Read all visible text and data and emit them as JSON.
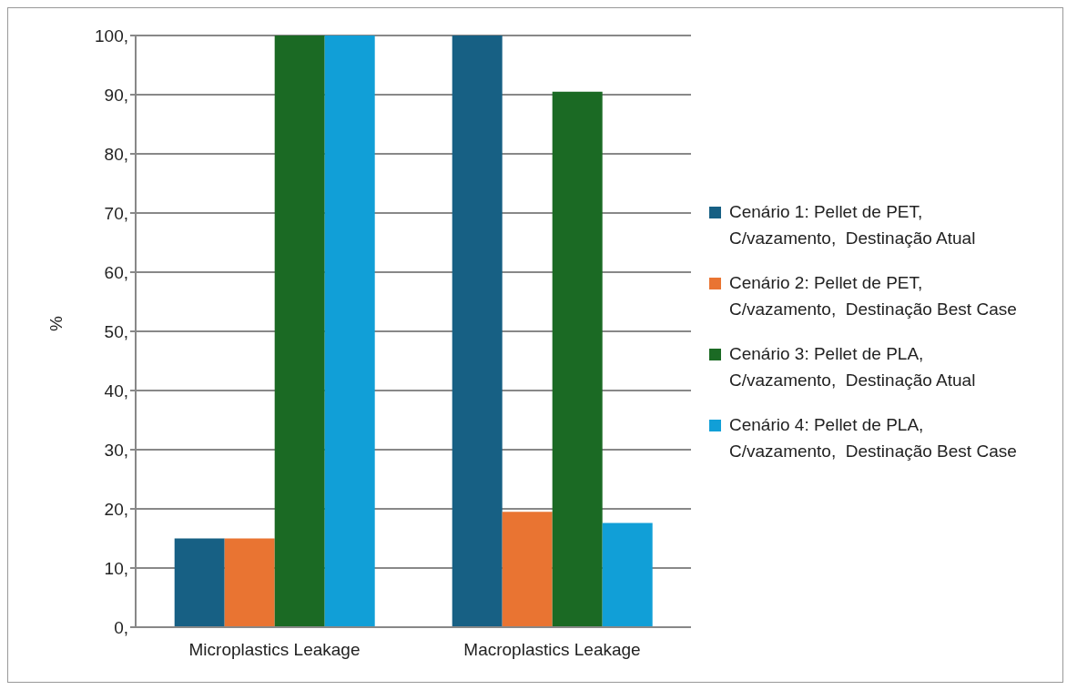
{
  "chart_data": {
    "type": "bar",
    "ylabel": "%",
    "categories": [
      "Microplastics Leakage",
      "Macroplastics Leakage"
    ],
    "series": [
      {
        "name": "Cenário 1: Pellet de PET, C/vazamento,  Destinação Atual",
        "color": "#176084",
        "values": [
          15.0,
          100
        ]
      },
      {
        "name": "Cenário 2: Pellet de PET, C/vazamento,  Destinação Best Case",
        "color": "#e97432",
        "values": [
          15.0,
          19.5
        ]
      },
      {
        "name": "Cenário 3: Pellet de PLA, C/vazamento,  Destinação Atual",
        "color": "#1b6a24",
        "values": [
          100,
          90.5
        ]
      },
      {
        "name": "Cenário 4: Pellet de PLA, C/vazamento,  Destinação Best Case",
        "color": "#119fd7",
        "values": [
          100,
          17.6
        ]
      }
    ],
    "ylim": [
      0,
      100
    ],
    "yticks": [
      {
        "value": 0,
        "label": "0,"
      },
      {
        "value": 10,
        "label": "10,"
      },
      {
        "value": 20,
        "label": "20,"
      },
      {
        "value": 30,
        "label": "30,"
      },
      {
        "value": 40,
        "label": "40,"
      },
      {
        "value": 50,
        "label": "50,"
      },
      {
        "value": 60,
        "label": "60,"
      },
      {
        "value": 70,
        "label": "70,"
      },
      {
        "value": 80,
        "label": "80,"
      },
      {
        "value": 90,
        "label": "90,"
      },
      {
        "value": 100,
        "label": "100,"
      }
    ],
    "grid": "y",
    "legend": "right"
  }
}
